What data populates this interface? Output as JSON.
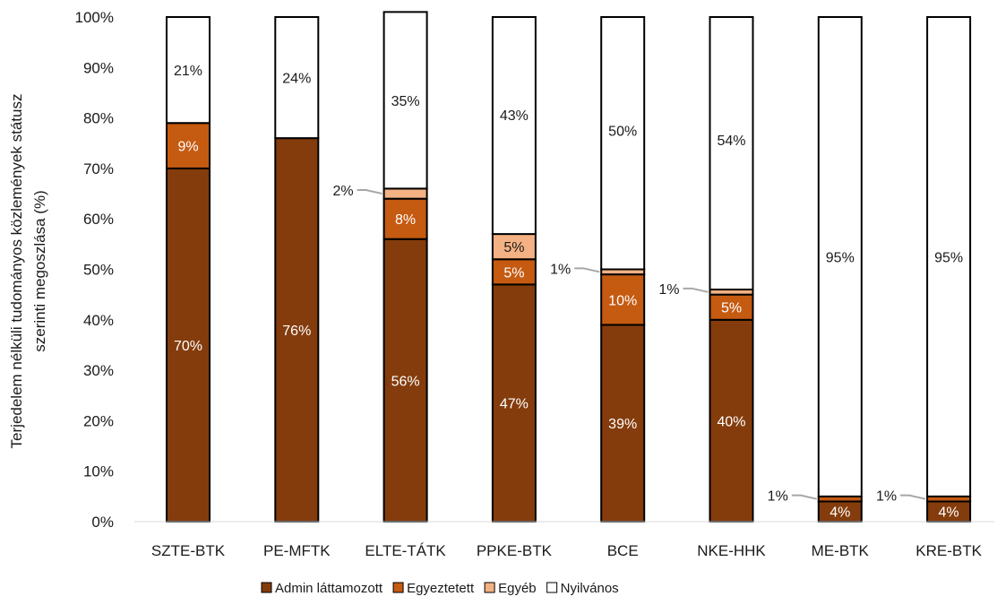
{
  "chart_data": {
    "type": "bar",
    "stacked": true,
    "normalized_percent": true,
    "ylabel_lines": [
      "Terjedelem nélküli tudományos közlemények státusz",
      "szerinti megoszlása (%)"
    ],
    "xlabel": "",
    "ylim": [
      0,
      100
    ],
    "yticks": [
      "0%",
      "10%",
      "20%",
      "30%",
      "40%",
      "50%",
      "60%",
      "70%",
      "80%",
      "90%",
      "100%"
    ],
    "categories": [
      "SZTE-BTK",
      "PE-MFTK",
      "ELTE-TÁTK",
      "PPKE-BTK",
      "BCE",
      "NKE-HHK",
      "ME-BTK",
      "KRE-BTK"
    ],
    "series": [
      {
        "name": "Admin láttamozott",
        "color": "#843c0c",
        "values": [
          70,
          76,
          56,
          47,
          39,
          40,
          4,
          4
        ],
        "labels": [
          "70%",
          "76%",
          "56%",
          "47%",
          "39%",
          "40%",
          "4%",
          "4%"
        ]
      },
      {
        "name": "Egyeztetett",
        "color": "#c55a11",
        "values": [
          9,
          0,
          8,
          5,
          10,
          5,
          1,
          1
        ],
        "labels": [
          "9%",
          "",
          "8%",
          "5%",
          "10%",
          "5%",
          "1%",
          "1%"
        ]
      },
      {
        "name": "Egyéb",
        "color": "#f4b183",
        "values": [
          0,
          0,
          2,
          5,
          1,
          1,
          0,
          0
        ],
        "labels": [
          "",
          "",
          "2%",
          "5%",
          "1%",
          "1%",
          "",
          ""
        ]
      },
      {
        "name": "Nyilvános",
        "color": "#ffffff",
        "values": [
          21,
          24,
          35,
          43,
          50,
          54,
          95,
          95
        ],
        "labels": [
          "21%",
          "24%",
          "35%",
          "43%",
          "50%",
          "54%",
          "95%",
          "95%"
        ]
      }
    ],
    "legend_position": "bottom",
    "grid": false
  }
}
